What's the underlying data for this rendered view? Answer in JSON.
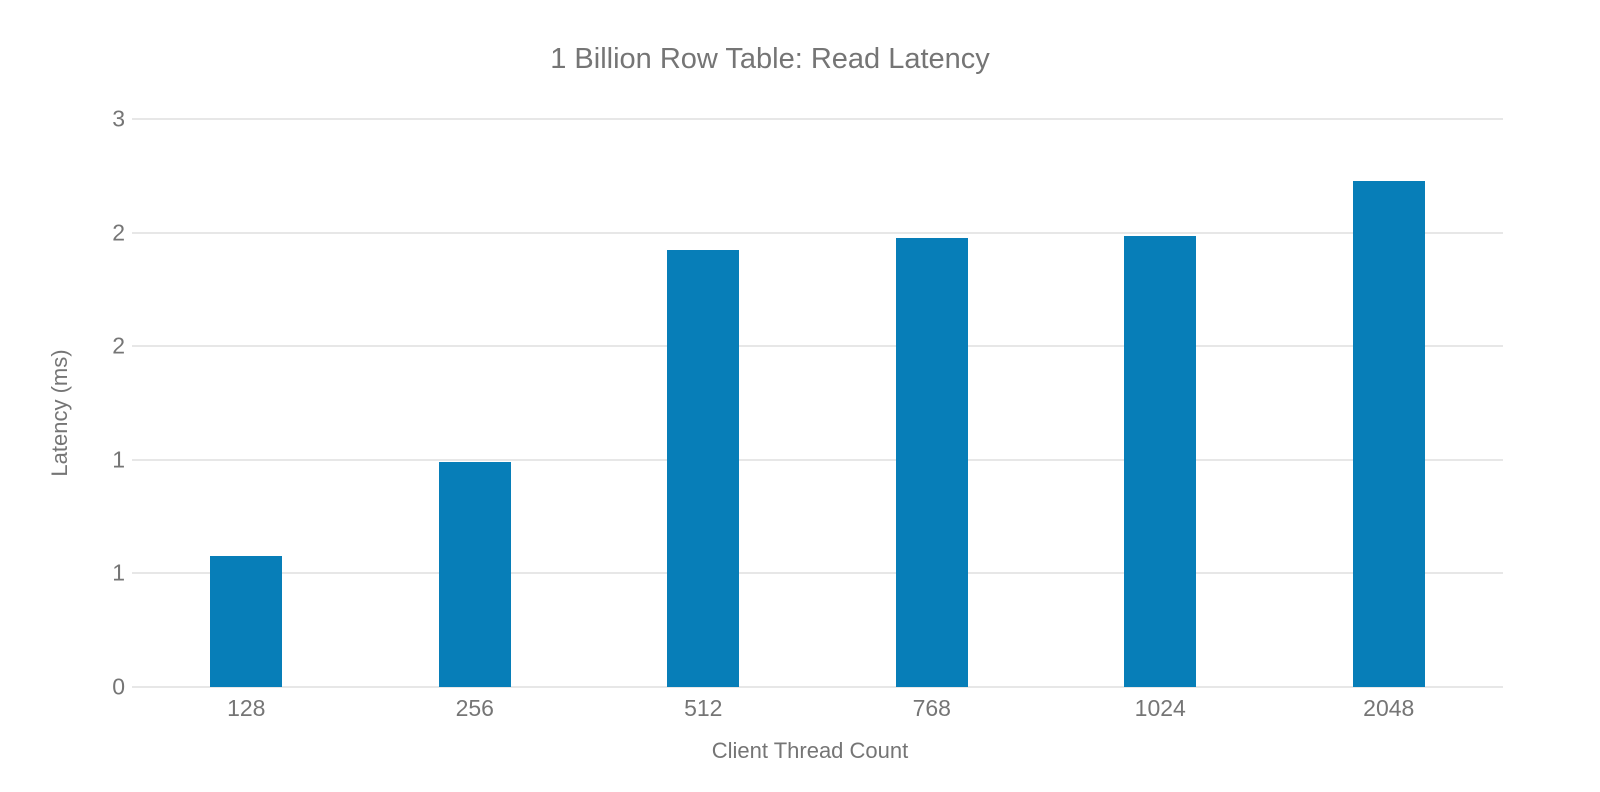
{
  "chart_data": {
    "type": "bar",
    "title": "1 Billion Row Table: Read Latency",
    "xlabel": "Client Thread Count",
    "ylabel": "Latency (ms)",
    "categories": [
      "128",
      "256",
      "512",
      "768",
      "1024",
      "2048"
    ],
    "values": [
      0.69,
      1.19,
      2.31,
      2.37,
      2.38,
      2.67
    ],
    "ylim": [
      0,
      3
    ],
    "y_ticks": [
      {
        "value": 0.0,
        "label": "0"
      },
      {
        "value": 0.6,
        "label": "1"
      },
      {
        "value": 1.2,
        "label": "1"
      },
      {
        "value": 1.8,
        "label": "2"
      },
      {
        "value": 2.4,
        "label": "2"
      },
      {
        "value": 3.0,
        "label": "3"
      }
    ],
    "grid": true,
    "legend": false,
    "colors": {
      "bar": "#077eb8",
      "gridline": "#e7e7e7",
      "text": "#757575",
      "background": "#ffffff"
    }
  }
}
